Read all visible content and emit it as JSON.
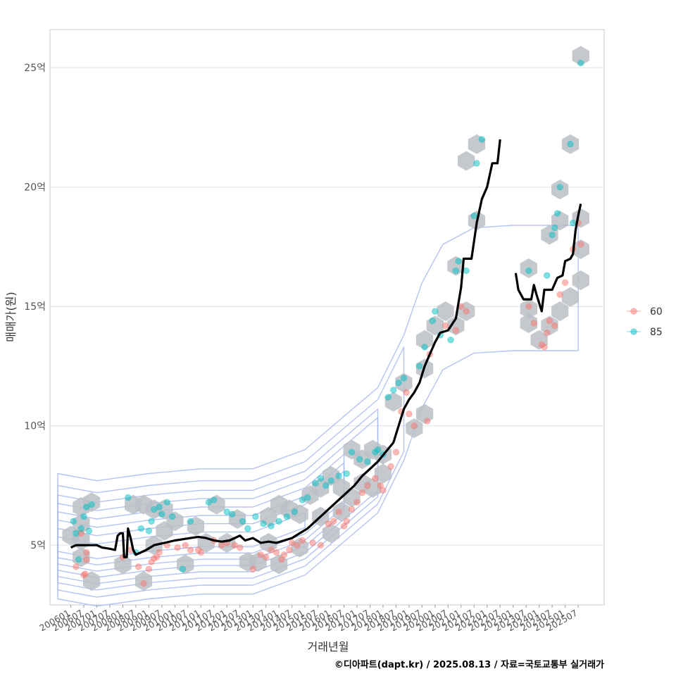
{
  "chart_data": {
    "type": "scatter",
    "xlabel": "거래년월",
    "ylabel": "매매가(원)",
    "caption": "©디아파트(dapt.kr) / 2025.08.13 / 자료=국토교통부 실거래가",
    "x_ticks": [
      "200601",
      "200607",
      "200701",
      "200707",
      "200801",
      "200807",
      "200901",
      "200907",
      "201001",
      "201007",
      "201101",
      "201107",
      "201201",
      "201207",
      "201301",
      "201307",
      "201401",
      "201407",
      "201501",
      "201507",
      "201601",
      "201607",
      "201701",
      "201707",
      "201801",
      "201807",
      "201901",
      "201907",
      "202001",
      "202007",
      "202101",
      "202107",
      "202201",
      "202207",
      "202301",
      "202307",
      "202401",
      "202407",
      "202501",
      "202507"
    ],
    "y_ticks": [
      {
        "value": 5,
        "label": "5억"
      },
      {
        "value": 10,
        "label": "10억"
      },
      {
        "value": 15,
        "label": "15억"
      },
      {
        "value": 20,
        "label": "20억"
      },
      {
        "value": 25,
        "label": "25억"
      }
    ],
    "xlim": [
      2005.2,
      2026.5
    ],
    "ylim": [
      2.5,
      26.6
    ],
    "grid": true,
    "legend_position": "right",
    "colors": {
      "s60": "#F8766D",
      "s85": "#00BFC4",
      "trend": "#000000",
      "contour": "#A8B8F0",
      "hex": "#BBBFC5",
      "hex_light": "#C9DCF0"
    },
    "series": [
      {
        "name": "60",
        "color": "#F8766D",
        "points": [
          [
            2006.2,
            4.1
          ],
          [
            2006.5,
            3.75
          ],
          [
            2006.55,
            3.8
          ],
          [
            2006.6,
            4.4
          ],
          [
            2006.6,
            4.7
          ],
          [
            2006.4,
            5.5
          ],
          [
            2008.0,
            4.5
          ],
          [
            2008.3,
            4.8
          ],
          [
            2008.6,
            4.1
          ],
          [
            2008.8,
            3.4
          ],
          [
            2009.0,
            4.0
          ],
          [
            2009.1,
            4.3
          ],
          [
            2009.2,
            4.45
          ],
          [
            2009.3,
            4.5
          ],
          [
            2009.4,
            4.7
          ],
          [
            2009.7,
            5.0
          ],
          [
            2010.1,
            4.9
          ],
          [
            2010.4,
            5.0
          ],
          [
            2010.6,
            4.8
          ],
          [
            2010.9,
            4.8
          ],
          [
            2011.0,
            4.7
          ],
          [
            2011.5,
            5.2
          ],
          [
            2011.8,
            5.0
          ],
          [
            2012.0,
            5.1
          ],
          [
            2012.3,
            5.0
          ],
          [
            2012.5,
            4.9
          ],
          [
            2013.0,
            4.0
          ],
          [
            2013.3,
            4.6
          ],
          [
            2013.5,
            4.5
          ],
          [
            2013.7,
            4.8
          ],
          [
            2013.9,
            4.7
          ],
          [
            2014.1,
            4.4
          ],
          [
            2014.2,
            4.6
          ],
          [
            2014.4,
            4.8
          ],
          [
            2014.5,
            5.1
          ],
          [
            2014.7,
            5.0
          ],
          [
            2014.9,
            5.2
          ],
          [
            2015.3,
            5.1
          ],
          [
            2015.6,
            5.0
          ],
          [
            2015.9,
            5.9
          ],
          [
            2016.1,
            6.0
          ],
          [
            2016.3,
            6.4
          ],
          [
            2016.5,
            5.8
          ],
          [
            2016.6,
            6.0
          ],
          [
            2016.8,
            6.5
          ],
          [
            2017.0,
            6.8
          ],
          [
            2017.2,
            7.2
          ],
          [
            2017.4,
            7.5
          ],
          [
            2017.7,
            7.8
          ],
          [
            2017.9,
            7.5
          ],
          [
            2018.0,
            7.3
          ],
          [
            2018.3,
            8.3
          ],
          [
            2018.5,
            8.9
          ],
          [
            2018.7,
            10.6
          ],
          [
            2018.9,
            11.4
          ],
          [
            2019.0,
            10.5
          ],
          [
            2019.2,
            10.0
          ],
          [
            2019.7,
            10.2
          ],
          [
            2019.8,
            13.0
          ],
          [
            2020.4,
            14.2
          ],
          [
            2020.8,
            14.0
          ],
          [
            2021.0,
            15.0
          ],
          [
            2021.2,
            14.8
          ],
          [
            2023.6,
            15.0
          ],
          [
            2023.8,
            14.3
          ],
          [
            2024.1,
            13.4
          ],
          [
            2024.2,
            13.3
          ],
          [
            2024.3,
            13.9
          ],
          [
            2024.4,
            14.4
          ],
          [
            2024.6,
            14.2
          ],
          [
            2024.8,
            15.5
          ],
          [
            2025.0,
            16.0
          ],
          [
            2025.3,
            17.4
          ],
          [
            2025.5,
            18.5
          ],
          [
            2025.6,
            17.6
          ]
        ]
      },
      {
        "name": "85",
        "color": "#00BFC4",
        "points": [
          [
            2006.1,
            6.0
          ],
          [
            2006.2,
            5.5
          ],
          [
            2006.3,
            4.4
          ],
          [
            2006.4,
            5.7
          ],
          [
            2006.5,
            6.2
          ],
          [
            2006.6,
            6.6
          ],
          [
            2006.7,
            5.6
          ],
          [
            2006.8,
            6.7
          ],
          [
            2008.2,
            7.0
          ],
          [
            2008.5,
            4.7
          ],
          [
            2008.7,
            5.7
          ],
          [
            2009.0,
            5.6
          ],
          [
            2009.1,
            6.0
          ],
          [
            2009.2,
            6.5
          ],
          [
            2009.4,
            6.6
          ],
          [
            2009.5,
            6.3
          ],
          [
            2009.7,
            6.8
          ],
          [
            2009.9,
            6.2
          ],
          [
            2010.3,
            4.0
          ],
          [
            2010.6,
            6.0
          ],
          [
            2011.3,
            6.8
          ],
          [
            2011.5,
            6.9
          ],
          [
            2012.0,
            6.4
          ],
          [
            2012.2,
            6.3
          ],
          [
            2012.6,
            6.0
          ],
          [
            2012.8,
            5.7
          ],
          [
            2013.1,
            6.2
          ],
          [
            2013.4,
            5.9
          ],
          [
            2013.7,
            5.8
          ],
          [
            2014.0,
            6.0
          ],
          [
            2014.3,
            6.2
          ],
          [
            2014.6,
            6.4
          ],
          [
            2014.9,
            6.9
          ],
          [
            2015.1,
            7.0
          ],
          [
            2015.4,
            7.6
          ],
          [
            2015.6,
            7.8
          ],
          [
            2015.8,
            7.5
          ],
          [
            2016.0,
            7.7
          ],
          [
            2016.3,
            7.9
          ],
          [
            2016.6,
            8.0
          ],
          [
            2016.8,
            8.9
          ],
          [
            2017.1,
            8.6
          ],
          [
            2017.4,
            8.5
          ],
          [
            2017.7,
            8.9
          ],
          [
            2017.8,
            9.0
          ],
          [
            2018.0,
            8.8
          ],
          [
            2018.2,
            11.2
          ],
          [
            2018.4,
            11.5
          ],
          [
            2018.6,
            11.8
          ],
          [
            2018.8,
            12.0
          ],
          [
            2019.4,
            12.5
          ],
          [
            2019.6,
            13.3
          ],
          [
            2019.9,
            14.4
          ],
          [
            2020.0,
            14.8
          ],
          [
            2020.2,
            13.8
          ],
          [
            2020.6,
            13.6
          ],
          [
            2020.8,
            16.5
          ],
          [
            2020.9,
            16.9
          ],
          [
            2021.2,
            16.5
          ],
          [
            2021.5,
            18.8
          ],
          [
            2021.6,
            21.0
          ],
          [
            2021.8,
            22.0
          ],
          [
            2023.6,
            16.5
          ],
          [
            2024.3,
            16.3
          ],
          [
            2024.5,
            18.0
          ],
          [
            2024.6,
            18.3
          ],
          [
            2024.7,
            18.9
          ],
          [
            2024.8,
            20.0
          ],
          [
            2025.2,
            21.8
          ],
          [
            2025.3,
            18.5
          ],
          [
            2025.6,
            25.2
          ]
        ]
      }
    ],
    "trend_segments": [
      [
        [
          2006.0,
          4.9
        ],
        [
          2006.2,
          5.0
        ],
        [
          2007.0,
          5.0
        ],
        [
          2007.2,
          4.9
        ],
        [
          2007.5,
          4.85
        ],
        [
          2007.7,
          4.8
        ],
        [
          2007.8,
          5.4
        ],
        [
          2007.9,
          5.5
        ],
        [
          2008.0,
          5.5
        ],
        [
          2008.05,
          4.5
        ],
        [
          2008.15,
          4.5
        ],
        [
          2008.2,
          5.7
        ],
        [
          2008.3,
          5.3
        ],
        [
          2008.4,
          4.8
        ],
        [
          2008.5,
          4.6
        ],
        [
          2008.7,
          4.7
        ],
        [
          2008.9,
          4.8
        ],
        [
          2009.2,
          5.0
        ],
        [
          2009.6,
          5.1
        ],
        [
          2010.0,
          5.2
        ],
        [
          2010.3,
          5.25
        ],
        [
          2010.6,
          5.3
        ],
        [
          2010.9,
          5.35
        ],
        [
          2011.2,
          5.3
        ],
        [
          2011.5,
          5.2
        ],
        [
          2011.8,
          5.15
        ],
        [
          2012.1,
          5.2
        ],
        [
          2012.5,
          5.4
        ],
        [
          2012.7,
          5.2
        ],
        [
          2013.0,
          5.3
        ],
        [
          2013.3,
          5.1
        ],
        [
          2013.6,
          5.15
        ],
        [
          2013.9,
          5.1
        ],
        [
          2014.2,
          5.2
        ],
        [
          2014.5,
          5.3
        ],
        [
          2014.8,
          5.5
        ],
        [
          2015.1,
          5.7
        ],
        [
          2015.4,
          6.0
        ],
        [
          2015.7,
          6.3
        ],
        [
          2016.0,
          6.6
        ],
        [
          2016.3,
          6.9
        ],
        [
          2016.6,
          7.2
        ],
        [
          2016.9,
          7.5
        ],
        [
          2017.2,
          7.9
        ],
        [
          2017.5,
          8.2
        ],
        [
          2017.8,
          8.5
        ],
        [
          2018.1,
          8.9
        ],
        [
          2018.4,
          9.3
        ],
        [
          2018.6,
          10.0
        ],
        [
          2018.8,
          10.7
        ],
        [
          2019.0,
          11.1
        ],
        [
          2019.2,
          11.4
        ],
        [
          2019.4,
          11.8
        ],
        [
          2019.6,
          12.5
        ],
        [
          2019.8,
          13.0
        ],
        [
          2020.0,
          13.5
        ],
        [
          2020.2,
          13.9
        ],
        [
          2020.5,
          14.0
        ],
        [
          2020.8,
          14.5
        ],
        [
          2021.0,
          15.8
        ],
        [
          2021.1,
          17.0
        ],
        [
          2021.4,
          17.0
        ],
        [
          2021.6,
          18.5
        ],
        [
          2021.8,
          19.5
        ],
        [
          2022.0,
          20.0
        ],
        [
          2022.2,
          21.0
        ],
        [
          2022.4,
          21.0
        ],
        [
          2022.5,
          22.0
        ]
      ],
      [
        [
          2023.1,
          16.4
        ],
        [
          2023.2,
          15.7
        ],
        [
          2023.4,
          15.3
        ],
        [
          2023.7,
          15.3
        ],
        [
          2023.8,
          15.9
        ],
        [
          2023.9,
          15.5
        ],
        [
          2024.1,
          14.8
        ],
        [
          2024.2,
          15.7
        ],
        [
          2024.5,
          15.7
        ],
        [
          2024.7,
          16.2
        ],
        [
          2024.9,
          16.3
        ],
        [
          2025.0,
          16.9
        ],
        [
          2025.2,
          17.0
        ],
        [
          2025.3,
          17.2
        ],
        [
          2025.4,
          18.2
        ],
        [
          2025.5,
          18.8
        ],
        [
          2025.6,
          19.3
        ]
      ]
    ],
    "hex_bins": [
      [
        2006.0,
        5.4
      ],
      [
        2006.4,
        6.6
      ],
      [
        2006.4,
        5.9
      ],
      [
        2006.4,
        5.2
      ],
      [
        2006.4,
        4.5
      ],
      [
        2006.8,
        6.8
      ],
      [
        2006.8,
        3.5
      ],
      [
        2008.0,
        4.2
      ],
      [
        2008.4,
        6.7
      ],
      [
        2008.8,
        6.7
      ],
      [
        2008.8,
        3.5
      ],
      [
        2009.2,
        6.5
      ],
      [
        2009.2,
        5.0
      ],
      [
        2009.6,
        6.5
      ],
      [
        2009.6,
        5.6
      ],
      [
        2010.0,
        6.0
      ],
      [
        2010.4,
        4.2
      ],
      [
        2010.8,
        5.8
      ],
      [
        2011.2,
        5.1
      ],
      [
        2011.6,
        6.7
      ],
      [
        2012.0,
        5.1
      ],
      [
        2012.4,
        6.1
      ],
      [
        2012.8,
        4.3
      ],
      [
        2013.2,
        4.3
      ],
      [
        2013.6,
        6.2
      ],
      [
        2013.6,
        5.1
      ],
      [
        2014.0,
        6.7
      ],
      [
        2014.0,
        4.2
      ],
      [
        2014.4,
        6.5
      ],
      [
        2014.8,
        4.9
      ],
      [
        2014.8,
        6.3
      ],
      [
        2015.2,
        7.1
      ],
      [
        2015.6,
        7.4
      ],
      [
        2015.6,
        6.2
      ],
      [
        2016.0,
        7.9
      ],
      [
        2016.0,
        5.5
      ],
      [
        2016.4,
        7.4
      ],
      [
        2016.4,
        6.4
      ],
      [
        2016.8,
        9.0
      ],
      [
        2016.8,
        7.0
      ],
      [
        2017.2,
        8.6
      ],
      [
        2017.2,
        7.6
      ],
      [
        2017.6,
        9.0
      ],
      [
        2017.6,
        7.4
      ],
      [
        2018.0,
        8.8
      ],
      [
        2018.0,
        8.0
      ],
      [
        2018.4,
        11.0
      ],
      [
        2018.8,
        11.8
      ],
      [
        2019.2,
        9.9
      ],
      [
        2019.6,
        10.5
      ],
      [
        2019.6,
        13.6
      ],
      [
        2019.6,
        12.4
      ],
      [
        2020.0,
        14.2
      ],
      [
        2020.4,
        14.8
      ],
      [
        2020.8,
        16.7
      ],
      [
        2020.8,
        14.2
      ],
      [
        2021.2,
        14.8
      ],
      [
        2021.2,
        21.1
      ],
      [
        2021.6,
        18.6
      ],
      [
        2021.6,
        21.8
      ],
      [
        2023.6,
        16.6
      ],
      [
        2023.6,
        14.9
      ],
      [
        2023.6,
        14.3
      ],
      [
        2024.0,
        13.6
      ],
      [
        2024.4,
        14.2
      ],
      [
        2024.4,
        18.0
      ],
      [
        2024.8,
        19.9
      ],
      [
        2024.8,
        18.6
      ],
      [
        2024.8,
        14.8
      ],
      [
        2025.2,
        15.4
      ],
      [
        2025.2,
        21.8
      ],
      [
        2025.6,
        17.4
      ],
      [
        2025.6,
        18.7
      ],
      [
        2025.6,
        16.1
      ],
      [
        2025.6,
        25.5
      ]
    ],
    "legend": [
      {
        "label": "60",
        "color": "#F8766D"
      },
      {
        "label": "85",
        "color": "#00BFC4"
      }
    ]
  }
}
